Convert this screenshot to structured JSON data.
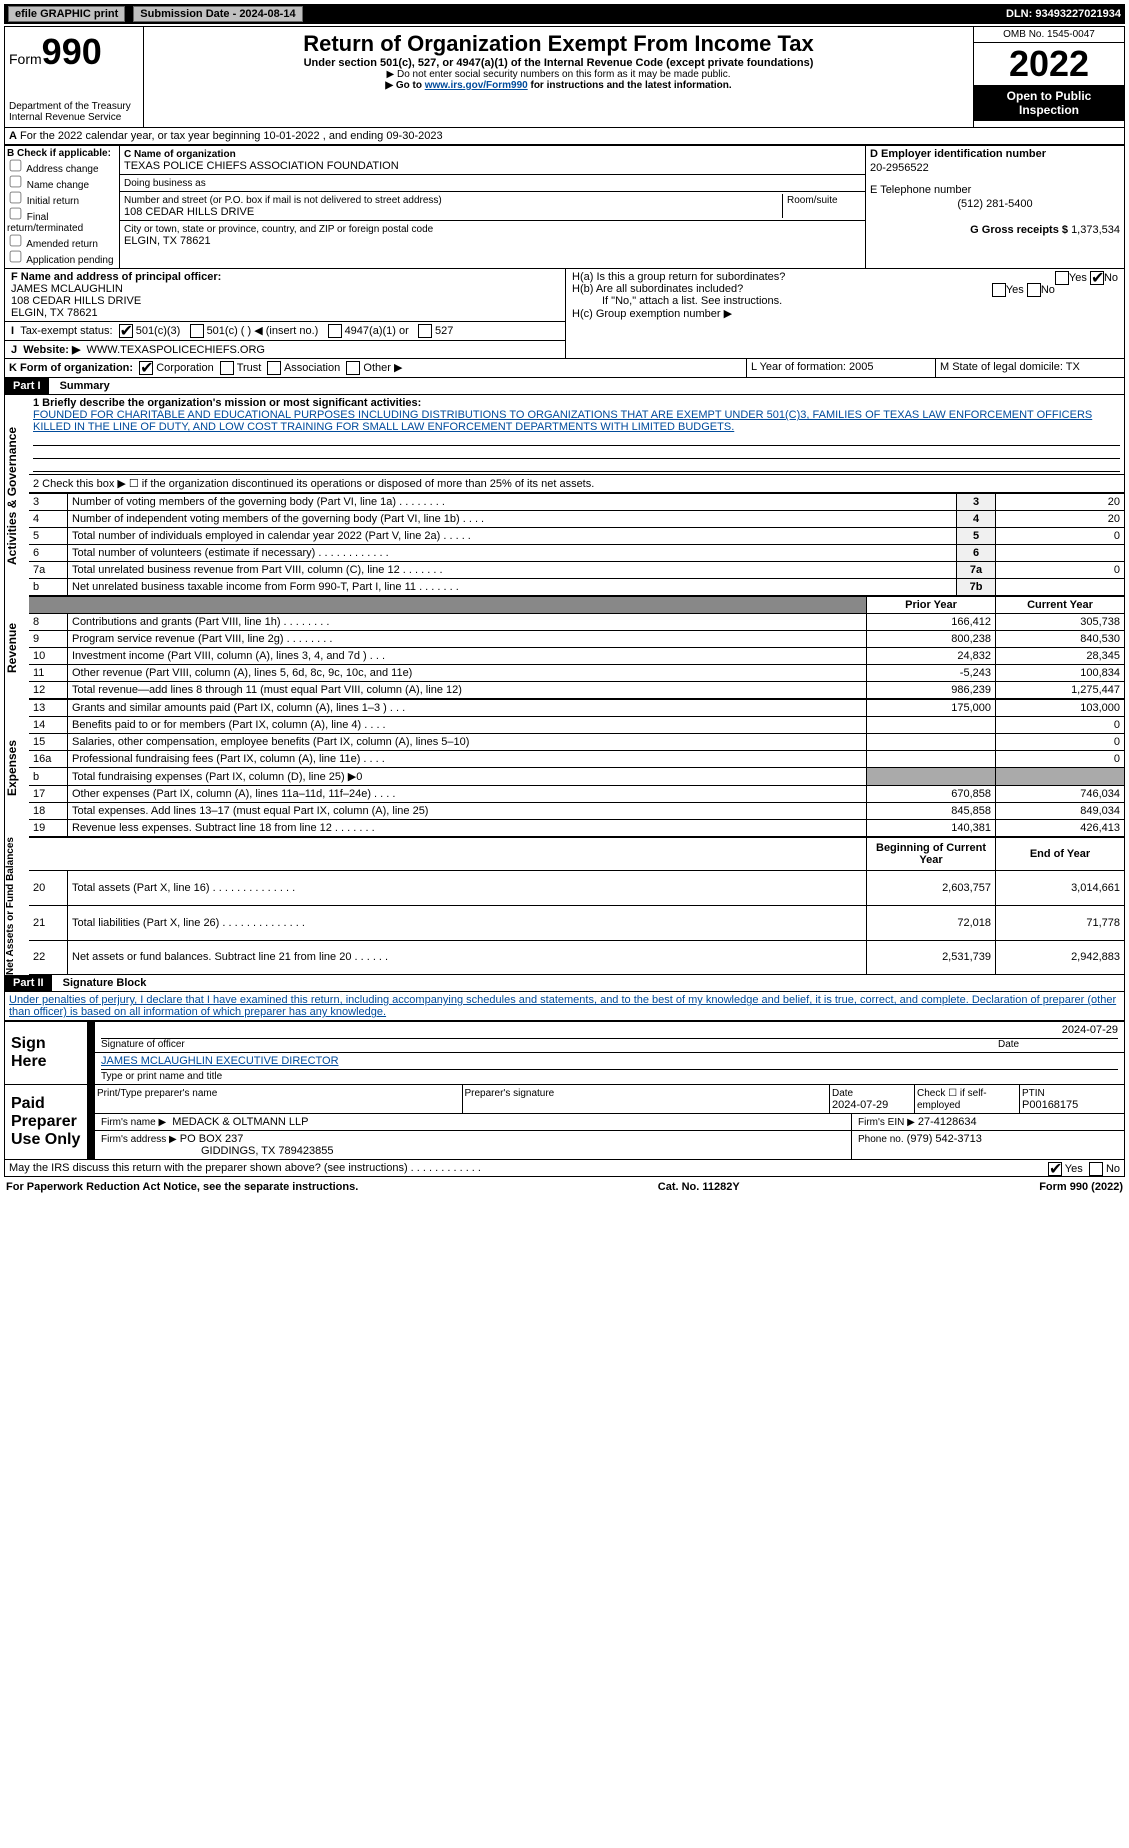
{
  "topbar": {
    "efile": "efile GRAPHIC print",
    "subdate_label": "Submission Date - 2024-08-14",
    "dln": "DLN: 93493227021934"
  },
  "header": {
    "form_prefix": "Form",
    "form_number": "990",
    "title": "Return of Organization Exempt From Income Tax",
    "subtitle": "Under section 501(c), 527, or 4947(a)(1) of the Internal Revenue Code (except private foundations)",
    "note1": "▶ Do not enter social security numbers on this form as it may be made public.",
    "note2_pre": "▶ Go to ",
    "note2_link": "www.irs.gov/Form990",
    "note2_post": " for instructions and the latest information.",
    "dept": "Department of the Treasury",
    "irs": "Internal Revenue Service",
    "omb": "OMB No. 1545-0047",
    "year": "2022",
    "open": "Open to Public Inspection"
  },
  "lineA": "For the 2022 calendar year, or tax year beginning 10-01-2022     , and ending 09-30-2023",
  "boxB": {
    "title": "B Check if applicable:",
    "opts": [
      "Address change",
      "Name change",
      "Initial return",
      "Final return/terminated",
      "Amended return",
      "Application pending"
    ]
  },
  "boxC": {
    "name_label": "C Name of organization",
    "name": "TEXAS POLICE CHIEFS ASSOCIATION FOUNDATION",
    "dba_label": "Doing business as",
    "addr_label": "Number and street (or P.O. box if mail is not delivered to street address)",
    "room_label": "Room/suite",
    "addr": "108 CEDAR HILLS DRIVE",
    "city_label": "City or town, state or province, country, and ZIP or foreign postal code",
    "city": "ELGIN, TX  78621"
  },
  "boxD": {
    "label": "D Employer identification number",
    "ein": "20-2956522",
    "e_label": "E Telephone number",
    "phone": "(512) 281-5400",
    "g_label": "G Gross receipts $ ",
    "g_val": "1,373,534"
  },
  "boxF": {
    "label": "F Name and address of principal officer:",
    "name": "JAMES MCLAUGHLIN",
    "addr": "108 CEDAR HILLS DRIVE",
    "city": "ELGIN, TX  78621"
  },
  "boxH": {
    "ha": "H(a)  Is this a group return for subordinates?",
    "hb": "H(b)  Are all subordinates included?",
    "hb_note": "If \"No,\" attach a list. See instructions.",
    "hc": "H(c)  Group exemption number ▶"
  },
  "boxI": "Tax-exempt status:",
  "boxI_501c3": "501(c)(3)",
  "boxI_501c": "501(c) (   ) ◀ (insert no.)",
  "boxI_4947": "4947(a)(1) or",
  "boxI_527": "527",
  "boxJ_label": "Website: ▶",
  "boxJ": "WWW.TEXASPOLICECHIEFS.ORG",
  "boxK": "K Form of organization:",
  "boxK_opts": [
    "Corporation",
    "Trust",
    "Association",
    "Other ▶"
  ],
  "boxL": "L Year of formation: 2005",
  "boxM": "M State of legal domicile: TX",
  "part1": {
    "bar": "Part I",
    "title": "Summary",
    "q1": "1 Briefly describe the organization's mission or most significant activities:",
    "mission": "FOUNDED FOR CHARITABLE AND EDUCATIONAL PURPOSES INCLUDING DISTRIBUTIONS TO ORGANIZATIONS THAT ARE EXEMPT UNDER 501(C)3, FAMILIES OF TEXAS LAW ENFORCEMENT OFFICERS KILLED IN THE LINE OF DUTY, AND LOW COST TRAINING FOR SMALL LAW ENFORCEMENT DEPARTMENTS WITH LIMITED BUDGETS.",
    "q2": "2   Check this box ▶ ☐ if the organization discontinued its operations or disposed of more than 25% of its net assets.",
    "rows_ag": [
      {
        "n": "3",
        "t": "Number of voting members of the governing body (Part VI, line 1a)   .    .    .    .    .    .    .    .",
        "box": "3",
        "v": "20"
      },
      {
        "n": "4",
        "t": "Number of independent voting members of the governing body (Part VI, line 1b)   .    .    .    .",
        "box": "4",
        "v": "20"
      },
      {
        "n": "5",
        "t": "Total number of individuals employed in calendar year 2022 (Part V, line 2a)   .    .    .    .    .",
        "box": "5",
        "v": "0"
      },
      {
        "n": "6",
        "t": "Total number of volunteers (estimate if necessary)    .    .    .    .    .    .    .    .    .    .    .    .",
        "box": "6",
        "v": ""
      },
      {
        "n": "7a",
        "t": "Total unrelated business revenue from Part VIII, column (C), line 12   .    .    .    .    .    .    .",
        "box": "7a",
        "v": "0"
      },
      {
        "n": "b",
        "t": "Net unrelated business taxable income from Form 990-T, Part I, line 11   .    .    .    .    .    .    .",
        "box": "7b",
        "v": ""
      }
    ],
    "col_py": "Prior Year",
    "col_cy": "Current Year",
    "rows_rev": [
      {
        "n": "8",
        "t": "Contributions and grants (Part VIII, line 1h)   .    .    .    .    .    .    .    .",
        "py": "166,412",
        "cy": "305,738"
      },
      {
        "n": "9",
        "t": "Program service revenue (Part VIII, line 2g)   .    .    .    .    .    .    .    .",
        "py": "800,238",
        "cy": "840,530"
      },
      {
        "n": "10",
        "t": "Investment income (Part VIII, column (A), lines 3, 4, and 7d )    .    .    .",
        "py": "24,832",
        "cy": "28,345"
      },
      {
        "n": "11",
        "t": "Other revenue (Part VIII, column (A), lines 5, 6d, 8c, 9c, 10c, and 11e)",
        "py": "-5,243",
        "cy": "100,834"
      },
      {
        "n": "12",
        "t": "Total revenue—add lines 8 through 11 (must equal Part VIII, column (A), line 12)",
        "py": "986,239",
        "cy": "1,275,447"
      }
    ],
    "rows_exp": [
      {
        "n": "13",
        "t": "Grants and similar amounts paid (Part IX, column (A), lines 1–3 )   .    .    .",
        "py": "175,000",
        "cy": "103,000"
      },
      {
        "n": "14",
        "t": "Benefits paid to or for members (Part IX, column (A), line 4)   .    .    .    .",
        "py": "",
        "cy": "0"
      },
      {
        "n": "15",
        "t": "Salaries, other compensation, employee benefits (Part IX, column (A), lines 5–10)",
        "py": "",
        "cy": "0"
      },
      {
        "n": "16a",
        "t": "Professional fundraising fees (Part IX, column (A), line 11e)   .    .    .    .",
        "py": "",
        "cy": "0"
      },
      {
        "n": "b",
        "t": "Total fundraising expenses (Part IX, column (D), line 25) ▶0",
        "py": "§",
        "cy": "§"
      },
      {
        "n": "17",
        "t": "Other expenses (Part IX, column (A), lines 11a–11d, 11f–24e)   .    .    .    .",
        "py": "670,858",
        "cy": "746,034"
      },
      {
        "n": "18",
        "t": "Total expenses. Add lines 13–17 (must equal Part IX, column (A), line 25)",
        "py": "845,858",
        "cy": "849,034"
      },
      {
        "n": "19",
        "t": "Revenue less expenses. Subtract line 18 from line 12   .    .    .    .    .    .    .",
        "py": "140,381",
        "cy": "426,413"
      }
    ],
    "col_bcy": "Beginning of Current Year",
    "col_eoy": "End of Year",
    "rows_na": [
      {
        "n": "20",
        "t": "Total assets (Part X, line 16)   .    .    .    .    .    .    .    .    .    .    .    .    .    .",
        "py": "2,603,757",
        "cy": "3,014,661"
      },
      {
        "n": "21",
        "t": "Total liabilities (Part X, line 26)   .    .    .    .    .    .    .    .    .    .    .    .    .    .",
        "py": "72,018",
        "cy": "71,778"
      },
      {
        "n": "22",
        "t": "Net assets or fund balances. Subtract line 21 from line 20   .    .    .    .    .    .",
        "py": "2,531,739",
        "cy": "2,942,883"
      }
    ],
    "side_ag": "Activities & Governance",
    "side_rev": "Revenue",
    "side_exp": "Expenses",
    "side_na": "Net Assets or Fund Balances"
  },
  "part2": {
    "bar": "Part II",
    "title": "Signature Block",
    "jurat": "Under penalties of perjury, I declare that I have examined this return, including accompanying schedules and statements, and to the best of my knowledge and belief, it is true, correct, and complete. Declaration of preparer (other than officer) is based on all information of which preparer has any knowledge.",
    "sign_here": "Sign Here",
    "sig_officer": "Signature of officer",
    "date": "Date",
    "sig_date": "2024-07-29",
    "officer_name": "JAMES MCLAUGHLIN  EXECUTIVE DIRECTOR",
    "type_name": "Type or print name and title",
    "paid": "Paid Preparer Use Only",
    "prep_name_lbl": "Print/Type preparer's name",
    "prep_sig_lbl": "Preparer's signature",
    "prep_date_lbl": "Date",
    "prep_date": "2024-07-29",
    "check_self": "Check ☐ if self-employed",
    "ptin_lbl": "PTIN",
    "ptin": "P00168175",
    "firm_name_lbl": "Firm's name    ▶",
    "firm_name": "MEDACK & OLTMANN LLP",
    "firm_ein_lbl": "Firm's EIN ▶",
    "firm_ein": "27-4128634",
    "firm_addr_lbl": "Firm's address ▶",
    "firm_addr": "PO BOX 237",
    "firm_city": "GIDDINGS, TX  789423855",
    "firm_phone_lbl": "Phone no.",
    "firm_phone": "(979) 542-3713",
    "discuss": "May the IRS discuss this return with the preparer shown above? (see instructions)   .    .    .    .    .    .    .    .    .    .    .    .",
    "yes": "Yes",
    "no": "No"
  },
  "footer": {
    "pra": "For Paperwork Reduction Act Notice, see the separate instructions.",
    "cat": "Cat. No. 11282Y",
    "form": "Form 990 (2022)"
  }
}
